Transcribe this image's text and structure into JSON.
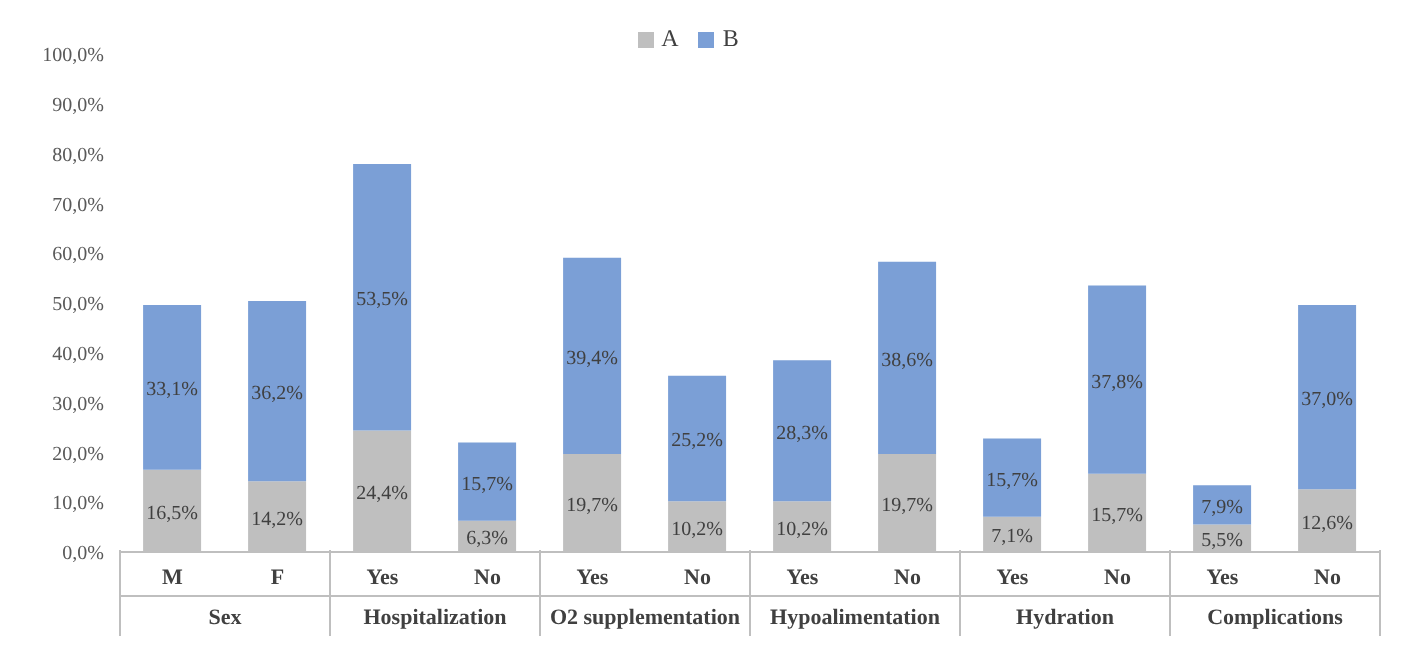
{
  "chart_data": {
    "type": "bar",
    "stacked": true,
    "categories": [
      "M",
      "F",
      "Yes",
      "No",
      "Yes",
      "No",
      "Yes",
      "No",
      "Yes",
      "No",
      "Yes",
      "No"
    ],
    "annotations": [
      "Sex",
      "Hospitalization",
      "O2 supplementation",
      "Hypoalimentation",
      "Hydration",
      "Complications"
    ],
    "series": [
      {
        "name": "A",
        "color": "#bfbfbf",
        "values": [
          16.5,
          14.2,
          24.4,
          6.3,
          19.7,
          10.2,
          10.2,
          19.7,
          7.1,
          15.7,
          5.5,
          12.6
        ],
        "value_labels": [
          "16,5%",
          "14,2%",
          "24,4%",
          "6,3%",
          "19,7%",
          "10,2%",
          "10,2%",
          "19,7%",
          "7,1%",
          "15,7%",
          "5,5%",
          "12,6%"
        ]
      },
      {
        "name": "B",
        "color": "#7b9fd6",
        "values": [
          33.1,
          36.2,
          53.5,
          15.7,
          39.4,
          25.2,
          28.3,
          38.6,
          15.7,
          37.8,
          7.9,
          37.0
        ],
        "value_labels": [
          "33,1%",
          "36,2%",
          "53,5%",
          "15,7%",
          "39,4%",
          "25,2%",
          "28,3%",
          "38,6%",
          "15,7%",
          "37,8%",
          "7,9%",
          "37,0%"
        ]
      }
    ],
    "ylim": [
      0,
      100
    ],
    "yticks": [
      {
        "value": 0,
        "label": "0,0%"
      },
      {
        "value": 10,
        "label": "10,0%"
      },
      {
        "value": 20,
        "label": "20,0%"
      },
      {
        "value": 30,
        "label": "30,0%"
      },
      {
        "value": 40,
        "label": "40,0%"
      },
      {
        "value": 50,
        "label": "50,0%"
      },
      {
        "value": 60,
        "label": "60,0%"
      },
      {
        "value": 70,
        "label": "70,0%"
      },
      {
        "value": 80,
        "label": "80,0%"
      },
      {
        "value": 90,
        "label": "90,0%"
      },
      {
        "value": 100,
        "label": "100,0%"
      }
    ],
    "grid": false,
    "legend": "top"
  }
}
